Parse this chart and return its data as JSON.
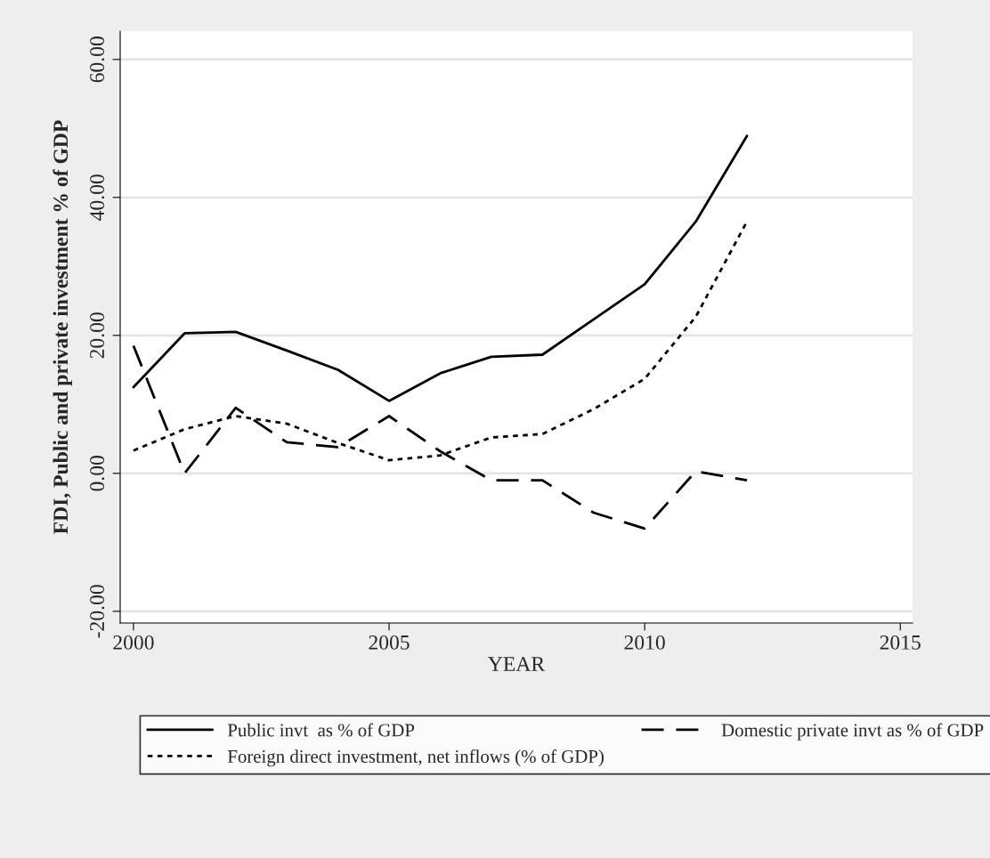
{
  "chart_data": {
    "type": "line",
    "xlabel": "YEAR",
    "ylabel": "FDI, Public and private investment % of GDP",
    "x": [
      2000,
      2001,
      2002,
      2003,
      2004,
      2005,
      2006,
      2007,
      2008,
      2009,
      2010,
      2011,
      2012
    ],
    "series": [
      {
        "name": "Public invt  as % of GDP",
        "color": "#000000",
        "line_style": "solid",
        "values": [
          12.5,
          20.3,
          20.5,
          17.8,
          15.0,
          10.5,
          14.5,
          16.9,
          17.2,
          22.3,
          27.4,
          36.5,
          48.9
        ]
      },
      {
        "name": "Domestic private invt as % of GDP",
        "color": "#000000",
        "line_style": "dashed",
        "values": [
          18.5,
          0.0,
          9.5,
          4.5,
          3.8,
          8.3,
          3.2,
          -1.0,
          -1.0,
          -5.7,
          -8.0,
          0.3,
          -1.0
        ]
      },
      {
        "name": "Foreign direct investment, net inflows (% of GDP)",
        "color": "#000000",
        "line_style": "dotted",
        "values": [
          3.3,
          6.4,
          8.3,
          7.2,
          4.4,
          1.9,
          2.6,
          5.2,
          5.7,
          9.3,
          13.7,
          22.7,
          36.5
        ]
      }
    ],
    "xlim": [
      1999.74,
      2015.24
    ],
    "xticks": [
      2000,
      2005,
      2010,
      2015
    ],
    "ylim": [
      -21.7,
      64.1
    ],
    "yticks": [
      {
        "value": -20,
        "label": "-20.00"
      },
      {
        "value": 0,
        "label": "0.00"
      },
      {
        "value": 20,
        "label": "20.00"
      },
      {
        "value": 40,
        "label": "40.00"
      },
      {
        "value": 60,
        "label": "60.00"
      }
    ],
    "grid": "y",
    "legend": "bottom",
    "marker": "none"
  }
}
